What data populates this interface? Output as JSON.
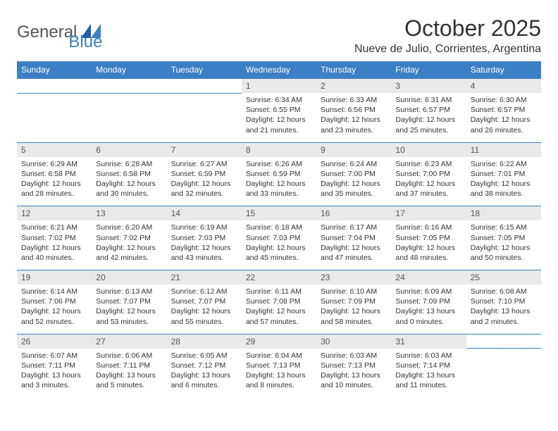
{
  "brand": {
    "name_part1": "General",
    "name_part2": "Blue"
  },
  "title": "October 2025",
  "location": "Nueve de Julio, Corrientes, Argentina",
  "colors": {
    "header_bg": "#3b7fc4",
    "header_text": "#ffffff",
    "daynum_bg": "#e9e9e9",
    "border": "#3b7fc4",
    "text": "#333333"
  },
  "day_headers": [
    "Sunday",
    "Monday",
    "Tuesday",
    "Wednesday",
    "Thursday",
    "Friday",
    "Saturday"
  ],
  "weeks": [
    {
      "nums": [
        "",
        "",
        "",
        "1",
        "2",
        "3",
        "4"
      ],
      "sunrise": [
        "",
        "",
        "",
        "Sunrise: 6:34 AM",
        "Sunrise: 6:33 AM",
        "Sunrise: 6:31 AM",
        "Sunrise: 6:30 AM"
      ],
      "sunset": [
        "",
        "",
        "",
        "Sunset: 6:55 PM",
        "Sunset: 6:56 PM",
        "Sunset: 6:57 PM",
        "Sunset: 6:57 PM"
      ],
      "day1": [
        "",
        "",
        "",
        "Daylight: 12 hours",
        "Daylight: 12 hours",
        "Daylight: 12 hours",
        "Daylight: 12 hours"
      ],
      "day2": [
        "",
        "",
        "",
        "and 21 minutes.",
        "and 23 minutes.",
        "and 25 minutes.",
        "and 26 minutes."
      ]
    },
    {
      "nums": [
        "5",
        "6",
        "7",
        "8",
        "9",
        "10",
        "11"
      ],
      "sunrise": [
        "Sunrise: 6:29 AM",
        "Sunrise: 6:28 AM",
        "Sunrise: 6:27 AM",
        "Sunrise: 6:26 AM",
        "Sunrise: 6:24 AM",
        "Sunrise: 6:23 AM",
        "Sunrise: 6:22 AM"
      ],
      "sunset": [
        "Sunset: 6:58 PM",
        "Sunset: 6:58 PM",
        "Sunset: 6:59 PM",
        "Sunset: 6:59 PM",
        "Sunset: 7:00 PM",
        "Sunset: 7:00 PM",
        "Sunset: 7:01 PM"
      ],
      "day1": [
        "Daylight: 12 hours",
        "Daylight: 12 hours",
        "Daylight: 12 hours",
        "Daylight: 12 hours",
        "Daylight: 12 hours",
        "Daylight: 12 hours",
        "Daylight: 12 hours"
      ],
      "day2": [
        "and 28 minutes.",
        "and 30 minutes.",
        "and 32 minutes.",
        "and 33 minutes.",
        "and 35 minutes.",
        "and 37 minutes.",
        "and 38 minutes."
      ]
    },
    {
      "nums": [
        "12",
        "13",
        "14",
        "15",
        "16",
        "17",
        "18"
      ],
      "sunrise": [
        "Sunrise: 6:21 AM",
        "Sunrise: 6:20 AM",
        "Sunrise: 6:19 AM",
        "Sunrise: 6:18 AM",
        "Sunrise: 6:17 AM",
        "Sunrise: 6:16 AM",
        "Sunrise: 6:15 AM"
      ],
      "sunset": [
        "Sunset: 7:02 PM",
        "Sunset: 7:02 PM",
        "Sunset: 7:03 PM",
        "Sunset: 7:03 PM",
        "Sunset: 7:04 PM",
        "Sunset: 7:05 PM",
        "Sunset: 7:05 PM"
      ],
      "day1": [
        "Daylight: 12 hours",
        "Daylight: 12 hours",
        "Daylight: 12 hours",
        "Daylight: 12 hours",
        "Daylight: 12 hours",
        "Daylight: 12 hours",
        "Daylight: 12 hours"
      ],
      "day2": [
        "and 40 minutes.",
        "and 42 minutes.",
        "and 43 minutes.",
        "and 45 minutes.",
        "and 47 minutes.",
        "and 48 minutes.",
        "and 50 minutes."
      ]
    },
    {
      "nums": [
        "19",
        "20",
        "21",
        "22",
        "23",
        "24",
        "25"
      ],
      "sunrise": [
        "Sunrise: 6:14 AM",
        "Sunrise: 6:13 AM",
        "Sunrise: 6:12 AM",
        "Sunrise: 6:11 AM",
        "Sunrise: 6:10 AM",
        "Sunrise: 6:09 AM",
        "Sunrise: 6:08 AM"
      ],
      "sunset": [
        "Sunset: 7:06 PM",
        "Sunset: 7:07 PM",
        "Sunset: 7:07 PM",
        "Sunset: 7:08 PM",
        "Sunset: 7:09 PM",
        "Sunset: 7:09 PM",
        "Sunset: 7:10 PM"
      ],
      "day1": [
        "Daylight: 12 hours",
        "Daylight: 12 hours",
        "Daylight: 12 hours",
        "Daylight: 12 hours",
        "Daylight: 12 hours",
        "Daylight: 13 hours",
        "Daylight: 13 hours"
      ],
      "day2": [
        "and 52 minutes.",
        "and 53 minutes.",
        "and 55 minutes.",
        "and 57 minutes.",
        "and 58 minutes.",
        "and 0 minutes.",
        "and 2 minutes."
      ]
    },
    {
      "nums": [
        "26",
        "27",
        "28",
        "29",
        "30",
        "31",
        ""
      ],
      "sunrise": [
        "Sunrise: 6:07 AM",
        "Sunrise: 6:06 AM",
        "Sunrise: 6:05 AM",
        "Sunrise: 6:04 AM",
        "Sunrise: 6:03 AM",
        "Sunrise: 6:03 AM",
        ""
      ],
      "sunset": [
        "Sunset: 7:11 PM",
        "Sunset: 7:11 PM",
        "Sunset: 7:12 PM",
        "Sunset: 7:13 PM",
        "Sunset: 7:13 PM",
        "Sunset: 7:14 PM",
        ""
      ],
      "day1": [
        "Daylight: 13 hours",
        "Daylight: 13 hours",
        "Daylight: 13 hours",
        "Daylight: 13 hours",
        "Daylight: 13 hours",
        "Daylight: 13 hours",
        ""
      ],
      "day2": [
        "and 3 minutes.",
        "and 5 minutes.",
        "and 6 minutes.",
        "and 8 minutes.",
        "and 10 minutes.",
        "and 11 minutes.",
        ""
      ]
    }
  ]
}
